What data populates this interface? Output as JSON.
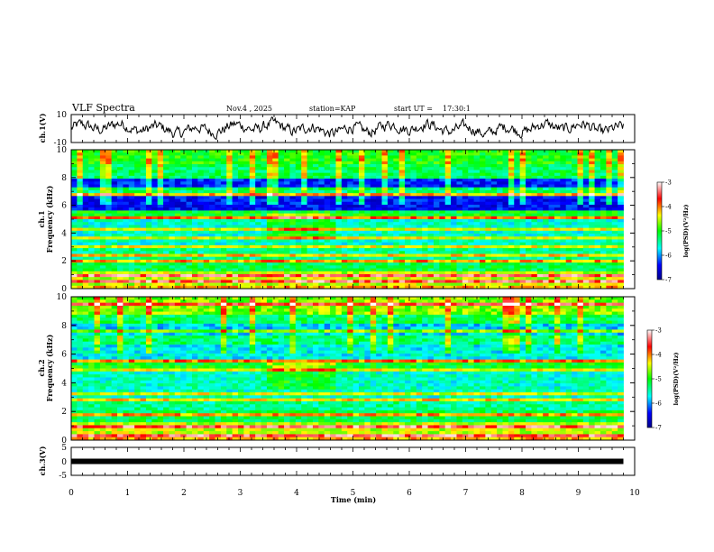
{
  "header": {
    "title": "VLF Spectra",
    "date": "Nov.4 , 2025",
    "station": "station=KAP",
    "start_label": "start UT =",
    "start_time": "17:30:1"
  },
  "chart_data": [
    {
      "type": "line",
      "name": "ch1-waveform",
      "ylabel": "ch.1(V)",
      "ylim": [
        -10,
        10
      ],
      "yticks": [
        "10",
        "-10"
      ],
      "xlim": [
        0,
        10
      ]
    },
    {
      "type": "heatmap",
      "name": "ch1-spectrogram",
      "ylabel_line1": "ch.1",
      "ylabel_line2": "Frequency (kHz)",
      "ylim": [
        0,
        10
      ],
      "yticks": [
        "0",
        "2",
        "4",
        "6",
        "8",
        "10"
      ],
      "xlim": [
        0,
        10
      ],
      "data_extent_min": 9.8,
      "colorbar": {
        "label": "log(PSD)(V²/Hz)",
        "range": [
          -7,
          -3
        ],
        "ticks": [
          "-3",
          "-4",
          "-5",
          "-6",
          "-7"
        ]
      }
    },
    {
      "type": "heatmap",
      "name": "ch2-spectrogram",
      "ylabel_line1": "ch.2",
      "ylabel_line2": "Frequency (kHz)",
      "ylim": [
        0,
        10
      ],
      "yticks": [
        "0",
        "2",
        "4",
        "6",
        "8",
        "10"
      ],
      "xlim": [
        0,
        10
      ],
      "data_extent_min": 9.8,
      "colorbar": {
        "label": "log(PSD)(V²/Hz)",
        "range": [
          -7,
          -3
        ],
        "ticks": [
          "-3",
          "-4",
          "-5",
          "-6",
          "-7"
        ]
      }
    },
    {
      "type": "line",
      "name": "ch3-level",
      "ylabel": "ch.3(V)",
      "ylim": [
        -5,
        5
      ],
      "yticks": [
        "5",
        "0",
        "-5"
      ],
      "xlim": [
        0,
        10
      ],
      "value": 0
    }
  ],
  "xaxis": {
    "label": "Time (min)",
    "ticks": [
      "0",
      "1",
      "2",
      "3",
      "4",
      "5",
      "6",
      "7",
      "8",
      "9",
      "10"
    ]
  }
}
